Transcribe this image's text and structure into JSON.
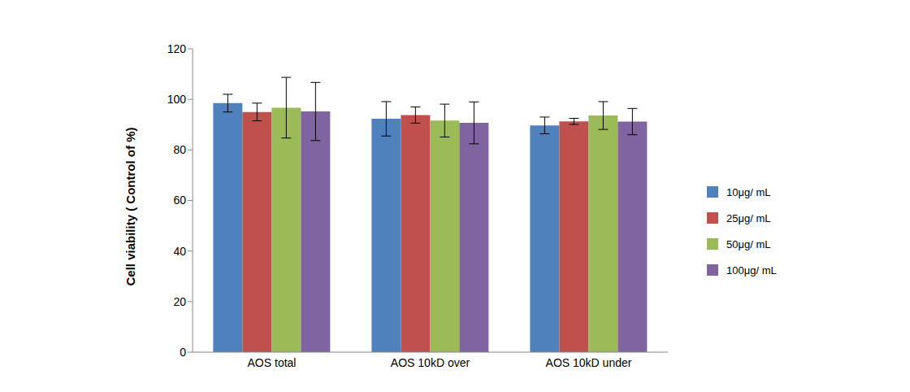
{
  "chart_data": {
    "type": "bar",
    "y_label": "Cell viability ( Control  of %)",
    "categories": [
      "AOS total",
      "AOS 10kD over",
      "AOS 10kD under"
    ],
    "series": [
      {
        "name": "10μg/ mL",
        "color": "#4f81bd",
        "values": [
          98.5,
          92.3,
          89.7
        ],
        "errors": [
          3.5,
          6.8,
          3.3
        ]
      },
      {
        "name": "25μg/ mL",
        "color": "#c0504d",
        "values": [
          95.0,
          93.8,
          91.3
        ],
        "errors": [
          3.5,
          3.2,
          1.2
        ]
      },
      {
        "name": "50μg/ mL",
        "color": "#9bbb59",
        "values": [
          96.7,
          91.6,
          93.6
        ],
        "errors": [
          12.0,
          6.5,
          5.5
        ]
      },
      {
        "name": "100μg/ mL",
        "color": "#8064a2",
        "values": [
          95.2,
          90.7,
          91.2
        ],
        "errors": [
          11.5,
          8.3,
          5.2
        ]
      }
    ],
    "ylim": [
      0,
      120
    ],
    "yticks": [
      0,
      20,
      40,
      60,
      80,
      100,
      120
    ],
    "grid": false,
    "legend": "right"
  }
}
